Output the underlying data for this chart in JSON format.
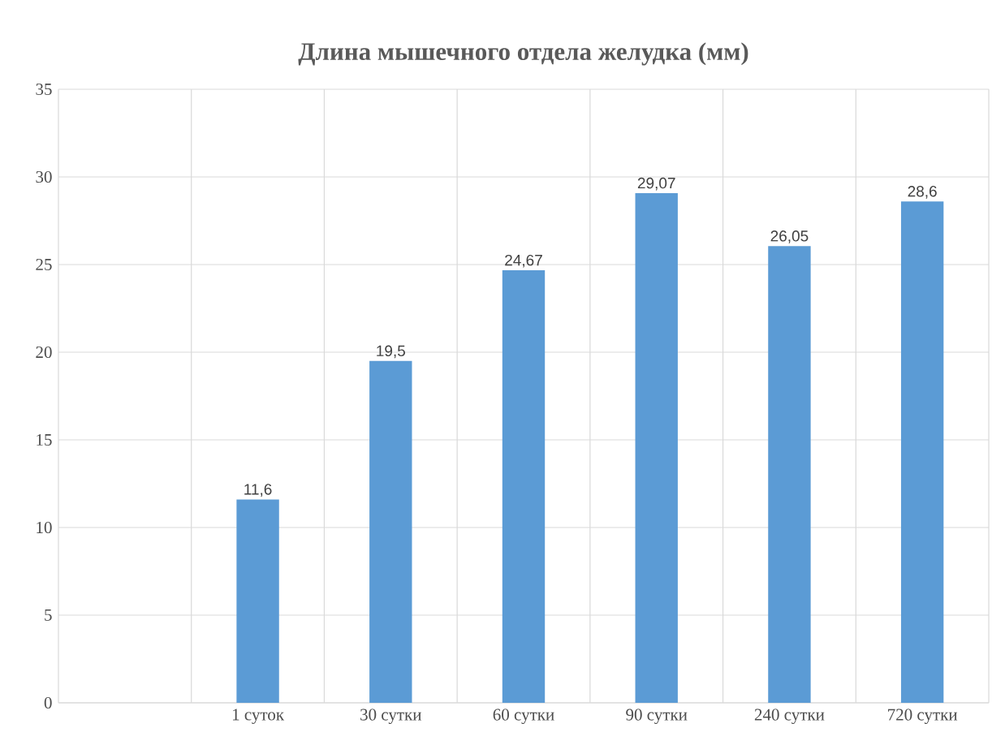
{
  "chart_data": {
    "type": "bar",
    "title": "Длина мышечного отдела желудка (мм)",
    "categories": [
      null,
      "1 суток",
      "30 сутки",
      "60 сутки",
      "90 сутки",
      "240 сутки",
      "720 сутки"
    ],
    "values": [
      null,
      11.6,
      19.5,
      24.67,
      29.07,
      26.05,
      28.6
    ],
    "value_labels": [
      null,
      "11,6",
      "19,5",
      "24,67",
      "29,07",
      "26,05",
      "28,6"
    ],
    "color": "#5b9bd5",
    "ylim": [
      0,
      35
    ],
    "yticks": [
      0,
      5,
      10,
      15,
      20,
      25,
      30,
      35
    ],
    "grid": true
  }
}
